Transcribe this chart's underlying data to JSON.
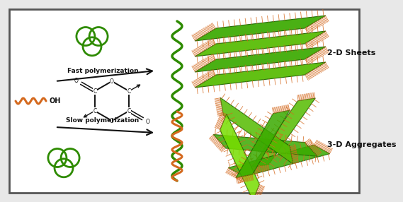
{
  "bg": "#e8e8e8",
  "white": "#FFFFFF",
  "black": "#111111",
  "orange": "#D4691E",
  "green": "#2E8B00",
  "sheet_green": "#3AAA00",
  "sheet_mid": "#55BB00",
  "sheet_light": "#77DD00",
  "sheet_dark": "#1A6600",
  "fast_label": "Fast polymerization",
  "slow_label": "Slow polymerization",
  "label_2d": "2-D Sheets",
  "label_3d": "3-D Aggregates",
  "oh_label": "OH"
}
